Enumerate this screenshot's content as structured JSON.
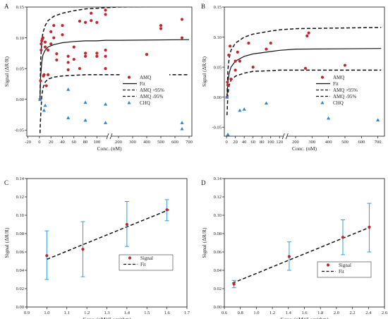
{
  "chart_data": [
    {
      "panel": "A",
      "type": "scatter",
      "xlabel": "Conc. (nM)",
      "ylabel": "Signal (ΔR/R)",
      "ylim": [
        -0.06,
        0.15
      ],
      "yticks": [
        -0.05,
        0.0,
        0.05,
        0.1,
        0.15
      ],
      "xaxis_break": true,
      "xticks_left": [
        -20,
        0,
        20,
        40,
        60,
        80,
        100
      ],
      "xticks_right": [
        200,
        300,
        400,
        500,
        600,
        700
      ],
      "legend": [
        "AMQ",
        "Fit",
        "AMQ +95%",
        "AMQ -95%",
        "CHQ"
      ],
      "legend_position": "right-middle",
      "series": [
        {
          "name": "AMQ",
          "marker": "circle",
          "color": "#c0262d",
          "points": [
            [
              1,
              0.0
            ],
            [
              2,
              0.03
            ],
            [
              3,
              0.08
            ],
            [
              3,
              0.09
            ],
            [
              4,
              0.095
            ],
            [
              5,
              0.098
            ],
            [
              6,
              0.1
            ],
            [
              7,
              0.038
            ],
            [
              8,
              0.04
            ],
            [
              10,
              0.085
            ],
            [
              10,
              0.093
            ],
            [
              12,
              0.022
            ],
            [
              15,
              0.04
            ],
            [
              15,
              0.08
            ],
            [
              20,
              0.09
            ],
            [
              20,
              0.11
            ],
            [
              25,
              0.12
            ],
            [
              25,
              0.1
            ],
            [
              30,
              0.064
            ],
            [
              30,
              0.074
            ],
            [
              40,
              0.105
            ],
            [
              40,
              0.12
            ],
            [
              50,
              0.048
            ],
            [
              50,
              0.06
            ],
            [
              50,
              0.07
            ],
            [
              60,
              0.065
            ],
            [
              60,
              0.085
            ],
            [
              70,
              0.127
            ],
            [
              70,
              0.05
            ],
            [
              80,
              0.07
            ],
            [
              80,
              0.075
            ],
            [
              80,
              0.125
            ],
            [
              90,
              0.128
            ],
            [
              90,
              0.14
            ],
            [
              100,
              0.07
            ],
            [
              100,
              0.075
            ],
            [
              100,
              0.125
            ],
            [
              115,
              0.05
            ],
            [
              115,
              0.07
            ],
            [
              115,
              0.08
            ],
            [
              115,
              0.138
            ],
            [
              115,
              0.145
            ],
            [
              400,
              0.073
            ],
            [
              500,
              0.115
            ],
            [
              500,
              0.12
            ],
            [
              650,
              0.1
            ],
            [
              650,
              0.13
            ]
          ]
        },
        {
          "name": "CHQ",
          "marker": "triangle",
          "color": "#2e86d0",
          "points": [
            [
              1,
              0.0
            ],
            [
              8,
              -0.018
            ],
            [
              10,
              -0.01
            ],
            [
              50,
              0.016
            ],
            [
              50,
              -0.03
            ],
            [
              80,
              -0.005
            ],
            [
              80,
              -0.034
            ],
            [
              115,
              -0.008
            ],
            [
              115,
              -0.038
            ],
            [
              650,
              -0.038
            ],
            [
              650,
              -0.048
            ]
          ]
        },
        {
          "name": "Fit",
          "style": "solid",
          "color": "#111111",
          "curve": [
            [
              1,
              0.0
            ],
            [
              2,
              0.035
            ],
            [
              4,
              0.06
            ],
            [
              6,
              0.072
            ],
            [
              10,
              0.08
            ],
            [
              15,
              0.085
            ],
            [
              25,
              0.089
            ],
            [
              40,
              0.092
            ],
            [
              60,
              0.094
            ],
            [
              80,
              0.095
            ],
            [
              100,
              0.095
            ],
            [
              115,
              0.096
            ],
            [
              200,
              0.096
            ],
            [
              700,
              0.097
            ]
          ]
        },
        {
          "name": "AMQ +95%",
          "style": "dashed",
          "color": "#111111",
          "curve": [
            [
              1,
              0.0
            ],
            [
              2,
              0.06
            ],
            [
              4,
              0.095
            ],
            [
              6,
              0.108
            ],
            [
              10,
              0.12
            ],
            [
              15,
              0.128
            ],
            [
              25,
              0.135
            ],
            [
              40,
              0.14
            ],
            [
              60,
              0.144
            ],
            [
              80,
              0.147
            ],
            [
              100,
              0.148
            ],
            [
              115,
              0.149
            ],
            [
              200,
              0.15
            ],
            [
              700,
              0.152
            ]
          ]
        },
        {
          "name": "AMQ -95%",
          "style": "dashed",
          "color": "#111111",
          "curve": [
            [
              1,
              -0.055
            ],
            [
              2,
              -0.03
            ],
            [
              4,
              0.005
            ],
            [
              6,
              0.018
            ],
            [
              10,
              0.028
            ],
            [
              15,
              0.033
            ],
            [
              25,
              0.036
            ],
            [
              40,
              0.038
            ],
            [
              60,
              0.039
            ],
            [
              80,
              0.04
            ],
            [
              100,
              0.04
            ],
            [
              115,
              0.04
            ],
            [
              200,
              0.04
            ],
            [
              700,
              0.04
            ]
          ]
        }
      ]
    },
    {
      "panel": "B",
      "type": "scatter",
      "xlabel": "Conc. (nM)",
      "ylabel": "Signal (ΔR/R)",
      "ylim": [
        -0.065,
        0.15
      ],
      "yticks": [
        -0.05,
        0.0,
        0.05,
        0.1,
        0.15
      ],
      "xaxis_break": true,
      "xticks_left": [
        0,
        20,
        40,
        60,
        80,
        100,
        120
      ],
      "xticks_right": [
        200,
        300,
        400,
        500,
        600,
        700
      ],
      "legend": [
        "AMQ",
        "Fit",
        "AMQ +95%",
        "AMQ -95%",
        "CHQ"
      ],
      "legend_position": "right-middle",
      "series": [
        {
          "name": "AMQ",
          "marker": "circle",
          "color": "#c0262d",
          "points": [
            [
              1,
              0.0
            ],
            [
              2,
              0.025
            ],
            [
              3,
              0.02
            ],
            [
              5,
              0.07
            ],
            [
              8,
              0.085
            ],
            [
              10,
              0.03
            ],
            [
              20,
              0.045
            ],
            [
              20,
              0.06
            ],
            [
              25,
              0.075
            ],
            [
              30,
              0.06
            ],
            [
              50,
              0.09
            ],
            [
              60,
              0.05
            ],
            [
              90,
              0.08
            ],
            [
              100,
              0.09
            ],
            [
              260,
              0.048
            ],
            [
              270,
              0.102
            ],
            [
              280,
              0.107
            ],
            [
              500,
              0.053
            ]
          ]
        },
        {
          "name": "CHQ",
          "marker": "triangle",
          "color": "#2e86d0",
          "points": [
            [
              1,
              0.0
            ],
            [
              3,
              -0.062
            ],
            [
              30,
              -0.022
            ],
            [
              40,
              -0.02
            ],
            [
              90,
              -0.01
            ],
            [
              350,
              -0.015
            ],
            [
              400,
              -0.035
            ],
            [
              700,
              -0.038
            ]
          ]
        },
        {
          "name": "Fit",
          "style": "solid",
          "color": "#111111",
          "curve": [
            [
              1,
              0.0
            ],
            [
              3,
              0.025
            ],
            [
              6,
              0.04
            ],
            [
              10,
              0.05
            ],
            [
              20,
              0.06
            ],
            [
              40,
              0.068
            ],
            [
              60,
              0.072
            ],
            [
              100,
              0.076
            ],
            [
              120,
              0.078
            ],
            [
              200,
              0.08
            ],
            [
              720,
              0.081
            ]
          ]
        },
        {
          "name": "AMQ +95%",
          "style": "dashed",
          "color": "#111111",
          "curve": [
            [
              1,
              0.0
            ],
            [
              3,
              0.045
            ],
            [
              6,
              0.065
            ],
            [
              10,
              0.078
            ],
            [
              20,
              0.09
            ],
            [
              40,
              0.1
            ],
            [
              60,
              0.105
            ],
            [
              100,
              0.11
            ],
            [
              120,
              0.112
            ],
            [
              200,
              0.114
            ],
            [
              720,
              0.116
            ]
          ]
        },
        {
          "name": "AMQ -95%",
          "style": "dashed",
          "color": "#111111",
          "curve": [
            [
              1,
              -0.03
            ],
            [
              3,
              0.005
            ],
            [
              6,
              0.02
            ],
            [
              10,
              0.028
            ],
            [
              20,
              0.035
            ],
            [
              40,
              0.04
            ],
            [
              60,
              0.043
            ],
            [
              100,
              0.044
            ],
            [
              120,
              0.045
            ],
            [
              200,
              0.045
            ],
            [
              720,
              0.045
            ]
          ]
        }
      ]
    },
    {
      "panel": "C",
      "type": "scatter",
      "xlabel": "Conc. (nM)(Logrithm)",
      "ylabel": "Signal (ΔR/R)",
      "xlim": [
        0.9,
        1.7
      ],
      "ylim": [
        0.0,
        0.14
      ],
      "xticks": [
        0.9,
        1.0,
        1.1,
        1.2,
        1.3,
        1.4,
        1.5,
        1.6,
        1.7
      ],
      "yticks": [
        0.0,
        0.02,
        0.04,
        0.06,
        0.08,
        0.1,
        0.12,
        0.14
      ],
      "legend": [
        "Signal",
        "Fit"
      ],
      "legend_position": "bottom-right",
      "series": [
        {
          "name": "Signal",
          "marker": "circle",
          "color": "#c0262d",
          "errcolor": "#2e9ee0",
          "points": [
            [
              1.0,
              0.056,
              0.083,
              0.03
            ],
            [
              1.18,
              0.063,
              0.093,
              0.033
            ],
            [
              1.4,
              0.09,
              0.115,
              0.066
            ],
            [
              1.6,
              0.106,
              0.117,
              0.094
            ]
          ]
        },
        {
          "name": "Fit",
          "style": "dashed",
          "color": "#111111",
          "curve": [
            [
              1.0,
              0.052
            ],
            [
              1.61,
              0.106
            ]
          ]
        }
      ]
    },
    {
      "panel": "D",
      "type": "scatter",
      "xlabel": "Conc. (nM)(Logrithm)",
      "ylabel": "Signal (ΔR/R)",
      "xlim": [
        0.6,
        2.6
      ],
      "ylim": [
        0.0,
        0.14
      ],
      "xticks": [
        0.6,
        0.8,
        1.0,
        1.2,
        1.4,
        1.6,
        1.8,
        2.0,
        2.2,
        2.4,
        2.6
      ],
      "yticks": [
        0.0,
        0.02,
        0.04,
        0.06,
        0.08,
        0.1,
        0.12,
        0.14
      ],
      "legend": [
        "Signal",
        "Fit"
      ],
      "legend_position": "bottom-right",
      "series": [
        {
          "name": "Signal",
          "marker": "circle",
          "color": "#c0262d",
          "errcolor": "#2e9ee0",
          "points": [
            [
              0.72,
              0.025,
              0.029,
              0.021
            ],
            [
              1.41,
              0.055,
              0.071,
              0.04
            ],
            [
              2.08,
              0.076,
              0.095,
              0.057
            ],
            [
              2.41,
              0.087,
              0.113,
              0.06
            ]
          ]
        },
        {
          "name": "Fit",
          "style": "dashed",
          "color": "#111111",
          "curve": [
            [
              0.7,
              0.026
            ],
            [
              2.42,
              0.087
            ]
          ]
        }
      ]
    }
  ]
}
